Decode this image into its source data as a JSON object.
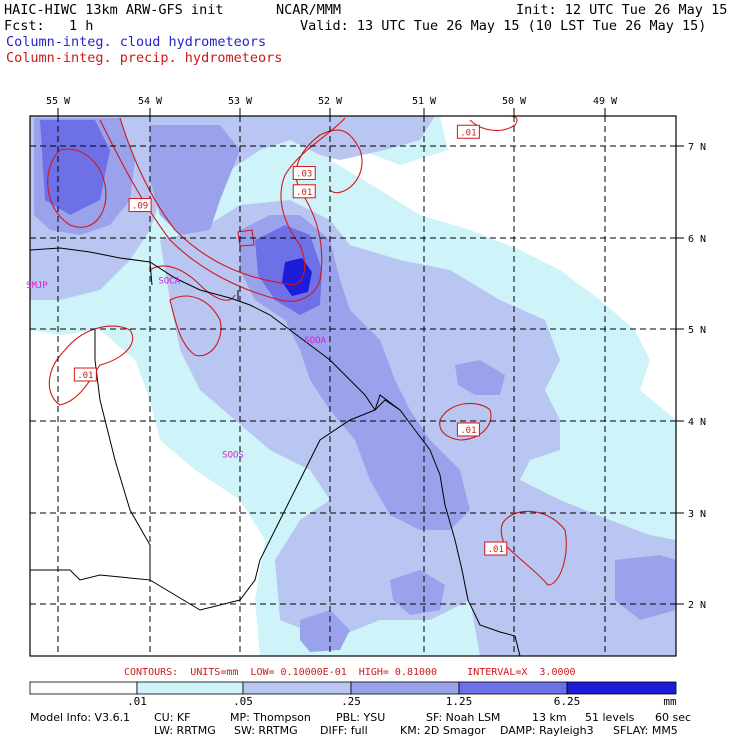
{
  "header": {
    "line1_left": "HAIC-HIWC 13km ARW-GFS init",
    "line1_mid": "NCAR/MMM",
    "line1_right": "Init: 12 UTC Tue 26 May 15",
    "line2_left": "Fcst:   1 h",
    "line2_right": "Valid: 13 UTC Tue 26 May 15 (10 LST Tue 26 May 15)",
    "field1": "Column-integ. cloud hydrometeors",
    "field2": "Column-integ. precip. hydrometeors"
  },
  "axes": {
    "lon_labels": [
      "55 W",
      "54 W",
      "53 W",
      "52 W",
      "51 W",
      "50 W",
      "49 W"
    ],
    "lat_labels": [
      "7 N",
      "6 N",
      "5 N",
      "4 N",
      "3 N",
      "2 N"
    ]
  },
  "stations": [
    {
      "id": "SMJP",
      "lon": -55.35,
      "lat": 5.45
    },
    {
      "id": "SOCA",
      "lon": -53.9,
      "lat": 5.5
    },
    {
      "id": "SOOA",
      "lon": -52.3,
      "lat": 4.85
    },
    {
      "id": "SOOS",
      "lon": -53.2,
      "lat": 3.6
    }
  ],
  "contour_labels": [
    {
      "text": ".01",
      "lon": -50.5,
      "lat": 7.15
    },
    {
      "text": ".03",
      "lon": -52.3,
      "lat": 6.7
    },
    {
      "text": ".01",
      "lon": -52.3,
      "lat": 6.5
    },
    {
      "text": ".09",
      "lon": -54.1,
      "lat": 6.35
    },
    {
      "text": ".01",
      "lon": -54.7,
      "lat": 4.5
    },
    {
      "text": ".01",
      "lon": -50.5,
      "lat": 3.9
    },
    {
      "text": ".01",
      "lon": -50.2,
      "lat": 2.6
    }
  ],
  "contours_info": "CONTOURS:  UNITS=mm  LOW= 0.10000E-01  HIGH= 0.81000     INTERVAL=X  3.0000",
  "colorbar": {
    "levels": [
      ".01",
      ".05",
      ".25",
      "1.25",
      "6.25"
    ],
    "units": "mm",
    "colors": [
      "#ffffff",
      "#cef4fa",
      "#b9c6f2",
      "#9aa2ec",
      "#6e70e8",
      "#4a4ae2",
      "#1c1cd9"
    ]
  },
  "model_info": {
    "line1": [
      "Model Info: V3.6.1",
      "CU: KF",
      "MP: Thompson",
      "PBL: YSU",
      "SF: Noah LSM",
      "13 km",
      "51 levels",
      "60 sec"
    ],
    "line2": [
      "LW: RRTMG",
      "SW: RRTMG",
      "DIFF: full",
      "KM: 2D Smagor",
      "DAMP: Rayleigh3",
      "SFLAY: MM5"
    ]
  }
}
